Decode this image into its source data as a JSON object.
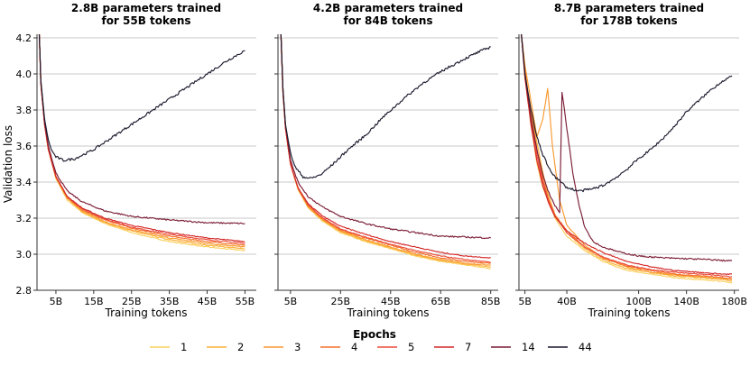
{
  "chart_data": [
    {
      "type": "line",
      "title": "2.8B parameters trained\nfor 55B tokens",
      "xlabel": "Training tokens",
      "ylabel": "Validation loss",
      "xlim": [
        0,
        58
      ],
      "ylim": [
        2.8,
        4.22
      ],
      "xticks": [
        5,
        15,
        25,
        35,
        45,
        55
      ],
      "xtick_labels": [
        "5B",
        "15B",
        "25B",
        "35B",
        "45B",
        "55B"
      ],
      "yticks": [
        2.8,
        3.0,
        3.2,
        3.4,
        3.6,
        3.8,
        4.0,
        4.2
      ],
      "ytick_labels": [
        "2.8",
        "3.0",
        "3.2",
        "3.4",
        "3.6",
        "3.8",
        "4.0",
        "4.2"
      ],
      "grid": true,
      "series": [
        {
          "name": "1",
          "x": [
            0.6,
            1,
            2,
            3,
            5,
            8,
            12,
            18,
            25,
            35,
            45,
            55
          ],
          "y": [
            4.22,
            3.95,
            3.72,
            3.58,
            3.42,
            3.3,
            3.23,
            3.17,
            3.12,
            3.07,
            3.04,
            3.02
          ]
        },
        {
          "name": "2",
          "x": [
            0.6,
            1,
            2,
            3,
            5,
            8,
            12,
            18,
            25,
            35,
            45,
            55
          ],
          "y": [
            4.22,
            3.95,
            3.72,
            3.58,
            3.42,
            3.31,
            3.235,
            3.175,
            3.13,
            3.08,
            3.05,
            3.03
          ]
        },
        {
          "name": "3",
          "x": [
            0.6,
            1,
            2,
            3,
            5,
            8,
            12,
            18,
            25,
            35,
            45,
            55
          ],
          "y": [
            4.22,
            3.95,
            3.72,
            3.58,
            3.43,
            3.31,
            3.24,
            3.18,
            3.135,
            3.09,
            3.06,
            3.04
          ]
        },
        {
          "name": "4",
          "x": [
            0.6,
            1,
            2,
            3,
            5,
            8,
            12,
            18,
            25,
            35,
            45,
            55
          ],
          "y": [
            4.22,
            3.95,
            3.72,
            3.58,
            3.43,
            3.315,
            3.245,
            3.19,
            3.145,
            3.1,
            3.07,
            3.05
          ]
        },
        {
          "name": "5",
          "x": [
            0.6,
            1,
            2,
            3,
            5,
            8,
            12,
            18,
            25,
            35,
            45,
            55
          ],
          "y": [
            4.22,
            3.95,
            3.72,
            3.58,
            3.43,
            3.32,
            3.25,
            3.195,
            3.15,
            3.11,
            3.08,
            3.06
          ]
        },
        {
          "name": "7",
          "x": [
            0.6,
            1,
            2,
            3,
            5,
            8,
            12,
            18,
            25,
            35,
            45,
            55
          ],
          "y": [
            4.22,
            3.95,
            3.72,
            3.58,
            3.43,
            3.32,
            3.255,
            3.2,
            3.16,
            3.12,
            3.09,
            3.07
          ]
        },
        {
          "name": "14",
          "x": [
            0.6,
            1,
            2,
            3,
            5,
            8,
            12,
            18,
            25,
            35,
            45,
            55
          ],
          "y": [
            4.22,
            3.96,
            3.73,
            3.6,
            3.45,
            3.35,
            3.29,
            3.24,
            3.21,
            3.19,
            3.175,
            3.17
          ]
        },
        {
          "name": "44",
          "x": [
            0.6,
            1,
            2,
            3,
            4,
            5,
            7,
            10,
            15,
            20,
            25,
            30,
            35,
            40,
            45,
            50,
            55
          ],
          "y": [
            4.22,
            3.97,
            3.75,
            3.63,
            3.57,
            3.54,
            3.52,
            3.53,
            3.58,
            3.65,
            3.72,
            3.79,
            3.86,
            3.93,
            4.0,
            4.07,
            4.13
          ]
        }
      ]
    },
    {
      "type": "line",
      "title": "4.2B parameters trained\nfor 84B tokens",
      "xlabel": "Training tokens",
      "ylabel": "",
      "xlim": [
        0,
        88
      ],
      "ylim": [
        2.8,
        4.22
      ],
      "xticks": [
        5,
        25,
        45,
        65,
        85
      ],
      "xtick_labels": [
        "5B",
        "25B",
        "45B",
        "65B",
        "85B"
      ],
      "yticks": [
        2.8,
        3.0,
        3.2,
        3.4,
        3.6,
        3.8,
        4.0,
        4.2
      ],
      "grid": true,
      "series": [
        {
          "name": "1",
          "x": [
            1.2,
            2,
            3,
            5,
            8,
            12,
            18,
            25,
            35,
            45,
            55,
            65,
            75,
            85
          ],
          "y": [
            4.22,
            3.9,
            3.7,
            3.5,
            3.36,
            3.26,
            3.18,
            3.12,
            3.07,
            3.03,
            2.99,
            2.96,
            2.94,
            2.92
          ]
        },
        {
          "name": "2",
          "x": [
            1.2,
            2,
            3,
            5,
            8,
            12,
            18,
            25,
            35,
            45,
            55,
            65,
            75,
            85
          ],
          "y": [
            4.22,
            3.9,
            3.7,
            3.5,
            3.36,
            3.26,
            3.185,
            3.125,
            3.075,
            3.035,
            2.995,
            2.965,
            2.945,
            2.93
          ]
        },
        {
          "name": "3",
          "x": [
            1.2,
            2,
            3,
            5,
            8,
            12,
            18,
            25,
            35,
            45,
            55,
            65,
            75,
            85
          ],
          "y": [
            4.22,
            3.9,
            3.7,
            3.5,
            3.365,
            3.265,
            3.19,
            3.13,
            3.08,
            3.04,
            3.0,
            2.97,
            2.95,
            2.94
          ]
        },
        {
          "name": "4",
          "x": [
            1.2,
            2,
            3,
            5,
            8,
            12,
            18,
            25,
            35,
            45,
            55,
            65,
            75,
            85
          ],
          "y": [
            4.22,
            3.9,
            3.7,
            3.5,
            3.365,
            3.27,
            3.195,
            3.135,
            3.09,
            3.05,
            3.01,
            2.98,
            2.96,
            2.95
          ]
        },
        {
          "name": "5",
          "x": [
            1.2,
            2,
            3,
            5,
            8,
            12,
            18,
            25,
            35,
            45,
            55,
            65,
            75,
            85
          ],
          "y": [
            4.22,
            3.9,
            3.7,
            3.5,
            3.37,
            3.275,
            3.2,
            3.14,
            3.095,
            3.055,
            3.02,
            2.99,
            2.97,
            2.955
          ]
        },
        {
          "name": "7",
          "x": [
            1.2,
            2,
            3,
            5,
            8,
            12,
            18,
            25,
            35,
            45,
            55,
            65,
            75,
            85
          ],
          "y": [
            4.22,
            3.9,
            3.7,
            3.5,
            3.37,
            3.28,
            3.21,
            3.155,
            3.11,
            3.07,
            3.04,
            3.01,
            2.99,
            2.98
          ]
        },
        {
          "name": "14",
          "x": [
            1.2,
            2,
            3,
            5,
            8,
            12,
            18,
            25,
            35,
            45,
            55,
            65,
            75,
            85
          ],
          "y": [
            4.22,
            3.92,
            3.72,
            3.52,
            3.4,
            3.32,
            3.26,
            3.21,
            3.17,
            3.14,
            3.12,
            3.1,
            3.095,
            3.09
          ]
        },
        {
          "name": "44",
          "x": [
            1.2,
            2,
            3,
            5,
            7,
            10,
            13,
            17,
            22,
            28,
            35,
            42,
            50,
            58,
            66,
            74,
            80,
            85
          ],
          "y": [
            4.22,
            3.92,
            3.72,
            3.56,
            3.48,
            3.43,
            3.42,
            3.44,
            3.5,
            3.58,
            3.66,
            3.76,
            3.86,
            3.95,
            4.02,
            4.08,
            4.12,
            4.15
          ]
        }
      ]
    },
    {
      "type": "line",
      "title": "8.7B parameters trained\nfor 178B tokens",
      "xlabel": "Training tokens",
      "ylabel": "",
      "xlim": [
        0,
        184
      ],
      "ylim": [
        2.8,
        4.22
      ],
      "xticks": [
        5,
        40,
        100,
        140,
        180
      ],
      "xtick_labels": [
        "5B",
        "40B",
        "100B",
        "140B",
        "180B"
      ],
      "yticks": [
        2.8,
        3.0,
        3.2,
        3.4,
        3.6,
        3.8,
        4.0,
        4.2
      ],
      "grid": true,
      "series": [
        {
          "name": "1",
          "x": [
            2,
            5,
            10,
            15,
            20,
            30,
            40,
            55,
            70,
            90,
            110,
            130,
            150,
            170,
            178
          ],
          "y": [
            4.22,
            3.98,
            3.72,
            3.5,
            3.37,
            3.2,
            3.1,
            3.02,
            2.96,
            2.91,
            2.89,
            2.87,
            2.86,
            2.85,
            2.84
          ]
        },
        {
          "name": "2",
          "x": [
            2,
            5,
            10,
            15,
            20,
            25,
            30,
            40,
            55,
            70,
            90,
            110,
            130,
            150,
            170,
            178
          ],
          "y": [
            4.22,
            4.0,
            3.8,
            3.62,
            3.45,
            3.32,
            3.22,
            3.12,
            3.03,
            2.97,
            2.92,
            2.9,
            2.88,
            2.87,
            2.86,
            2.85
          ]
        },
        {
          "name": "3",
          "x": [
            2,
            5,
            10,
            15,
            20,
            24,
            28,
            34,
            40,
            55,
            70,
            90,
            110,
            130,
            150,
            170,
            178
          ],
          "y": [
            4.22,
            4.05,
            3.85,
            3.65,
            3.75,
            3.92,
            3.6,
            3.3,
            3.16,
            3.05,
            2.98,
            2.93,
            2.9,
            2.885,
            2.875,
            2.865,
            2.86
          ]
        },
        {
          "name": "4",
          "x": [
            2,
            5,
            10,
            15,
            20,
            25,
            30,
            40,
            55,
            70,
            90,
            110,
            130,
            150,
            170,
            178
          ],
          "y": [
            4.22,
            4.02,
            3.78,
            3.58,
            3.42,
            3.3,
            3.22,
            3.13,
            3.04,
            2.98,
            2.935,
            2.91,
            2.89,
            2.88,
            2.87,
            2.865
          ]
        },
        {
          "name": "5",
          "x": [
            2,
            5,
            10,
            15,
            20,
            25,
            30,
            40,
            55,
            70,
            90,
            110,
            130,
            150,
            170,
            178
          ],
          "y": [
            4.22,
            4.0,
            3.75,
            3.55,
            3.4,
            3.29,
            3.21,
            3.12,
            3.04,
            2.985,
            2.94,
            2.915,
            2.9,
            2.89,
            2.88,
            2.875
          ]
        },
        {
          "name": "7",
          "x": [
            2,
            5,
            10,
            15,
            20,
            25,
            30,
            40,
            55,
            70,
            90,
            110,
            130,
            150,
            170,
            178
          ],
          "y": [
            4.22,
            3.98,
            3.72,
            3.52,
            3.38,
            3.28,
            3.21,
            3.13,
            3.06,
            3.01,
            2.96,
            2.93,
            2.91,
            2.9,
            2.89,
            2.89
          ]
        },
        {
          "name": "14",
          "x": [
            2,
            5,
            10,
            15,
            20,
            25,
            30,
            34,
            36,
            40,
            45,
            50,
            55,
            62,
            70,
            85,
            100,
            120,
            140,
            160,
            170,
            178
          ],
          "y": [
            4.22,
            4.0,
            3.75,
            3.58,
            3.44,
            3.34,
            3.27,
            3.23,
            3.9,
            3.7,
            3.45,
            3.28,
            3.15,
            3.07,
            3.04,
            3.01,
            2.99,
            2.98,
            2.975,
            2.97,
            2.965,
            2.965
          ]
        },
        {
          "name": "44",
          "x": [
            2,
            5,
            10,
            15,
            20,
            25,
            30,
            40,
            50,
            60,
            70,
            80,
            90,
            100,
            110,
            120,
            130,
            140,
            150,
            160,
            170,
            178
          ],
          "y": [
            4.22,
            4.0,
            3.8,
            3.65,
            3.55,
            3.48,
            3.43,
            3.37,
            3.35,
            3.36,
            3.38,
            3.42,
            3.47,
            3.53,
            3.58,
            3.64,
            3.71,
            3.79,
            3.85,
            3.91,
            3.96,
            3.99
          ]
        }
      ]
    }
  ],
  "legend": {
    "title": "Epochs",
    "entries": [
      "1",
      "2",
      "3",
      "4",
      "5",
      "7",
      "14",
      "44"
    ],
    "colors": [
      "#fcd060",
      "#fbb33a",
      "#f99a2f",
      "#f5722c",
      "#eb4d3a",
      "#d42a2a",
      "#7b1d36",
      "#1b1a2e"
    ],
    "placement": "bottom-center"
  }
}
